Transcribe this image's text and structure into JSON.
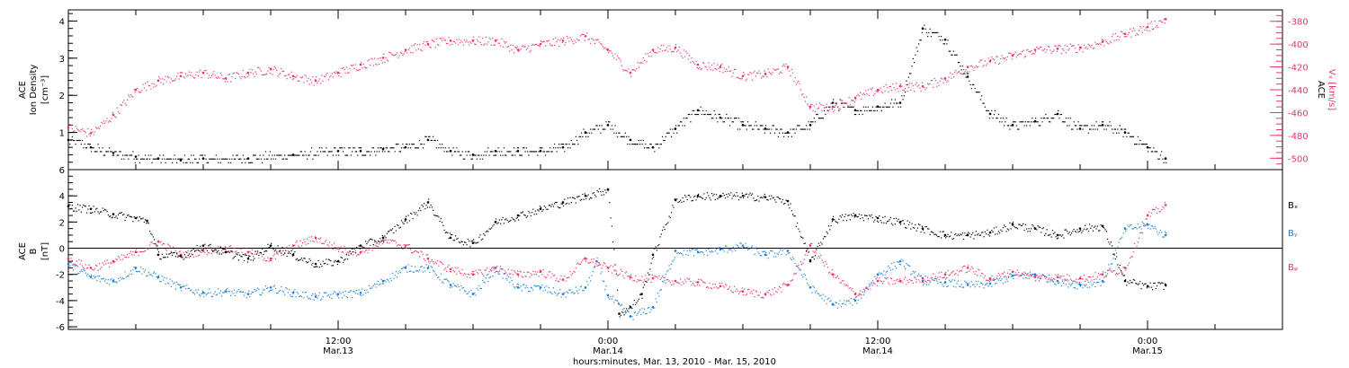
{
  "colors": {
    "black": "#000000",
    "pink": "#e8356a",
    "blue": "#1d80d6"
  },
  "x_axis": {
    "title": "hours:minutes, Mar. 13, 2010 - Mar. 15, 2010",
    "ticks": [
      {
        "t": 12,
        "time": "12:00",
        "date": "Mar.13"
      },
      {
        "t": 24,
        "time": "0:00",
        "date": "Mar.14"
      },
      {
        "t": 36,
        "time": "12:00",
        "date": "Mar.14"
      },
      {
        "t": 48,
        "time": "0:00",
        "date": "Mar.15"
      }
    ]
  },
  "chart_data": [
    {
      "type": "scatter",
      "panel": "top",
      "x_range_hours": [
        0,
        54
      ],
      "left_axis": {
        "label_lines": [
          "ACE",
          "Ion Density",
          "[cm⁻³]"
        ],
        "range": [
          0,
          4.3
        ],
        "ticks": [
          "1",
          "2",
          "3",
          "4"
        ]
      },
      "right_axis": {
        "label_lines": [
          "ACE",
          "Vₓ [km/s]"
        ],
        "range": [
          -510,
          -370
        ],
        "ticks": [
          "-380",
          "-400",
          "-420",
          "-440",
          "-460",
          "-480",
          "-500"
        ],
        "color": "#e8356a"
      },
      "series": [
        {
          "name": "Ion Density",
          "color": "#000000",
          "axis": "left",
          "points": [
            [
              0,
              0.8
            ],
            [
              1,
              0.6
            ],
            [
              2,
              0.45
            ],
            [
              3,
              0.35
            ],
            [
              4,
              0.3
            ],
            [
              5,
              0.25
            ],
            [
              6,
              0.3
            ],
            [
              8,
              0.3
            ],
            [
              10,
              0.4
            ],
            [
              12,
              0.5
            ],
            [
              13,
              0.5
            ],
            [
              14,
              0.55
            ],
            [
              15,
              0.6
            ],
            [
              16,
              0.8
            ],
            [
              17,
              0.5
            ],
            [
              18,
              0.4
            ],
            [
              19,
              0.5
            ],
            [
              20,
              0.5
            ],
            [
              21,
              0.5
            ],
            [
              22,
              0.6
            ],
            [
              23,
              1.0
            ],
            [
              24,
              1.2
            ],
            [
              25,
              0.8
            ],
            [
              26,
              0.6
            ],
            [
              27,
              1.1
            ],
            [
              28,
              1.6
            ],
            [
              29,
              1.4
            ],
            [
              30,
              1.2
            ],
            [
              31,
              1.1
            ],
            [
              32,
              1.0
            ],
            [
              33,
              1.2
            ],
            [
              34,
              1.8
            ],
            [
              35,
              1.6
            ],
            [
              36,
              1.7
            ],
            [
              37,
              1.8
            ],
            [
              38,
              3.8
            ],
            [
              39,
              3.5
            ],
            [
              40,
              2.5
            ],
            [
              41,
              1.5
            ],
            [
              42,
              1.2
            ],
            [
              43,
              1.3
            ],
            [
              44,
              1.5
            ],
            [
              45,
              1.1
            ],
            [
              46,
              1.2
            ],
            [
              47,
              1.0
            ],
            [
              48,
              0.6
            ],
            [
              48.8,
              0.3
            ]
          ]
        },
        {
          "name": "Vx",
          "color": "#e8356a",
          "axis": "right",
          "points": [
            [
              0,
              -473
            ],
            [
              1,
              -478
            ],
            [
              2,
              -462
            ],
            [
              3,
              -440
            ],
            [
              4,
              -432
            ],
            [
              5,
              -428
            ],
            [
              6,
              -425
            ],
            [
              7,
              -430
            ],
            [
              8,
              -425
            ],
            [
              9,
              -422
            ],
            [
              10,
              -428
            ],
            [
              11,
              -432
            ],
            [
              12,
              -425
            ],
            [
              13,
              -418
            ],
            [
              14,
              -412
            ],
            [
              15,
              -405
            ],
            [
              16,
              -400
            ],
            [
              17,
              -397
            ],
            [
              18,
              -397
            ],
            [
              19,
              -397
            ],
            [
              20,
              -405
            ],
            [
              21,
              -400
            ],
            [
              22,
              -397
            ],
            [
              23,
              -393
            ],
            [
              24,
              -405
            ],
            [
              25,
              -425
            ],
            [
              26,
              -405
            ],
            [
              27,
              -403
            ],
            [
              28,
              -418
            ],
            [
              29,
              -420
            ],
            [
              30,
              -428
            ],
            [
              31,
              -426
            ],
            [
              32,
              -420
            ],
            [
              33,
              -455
            ],
            [
              34,
              -455
            ],
            [
              35,
              -447
            ],
            [
              36,
              -440
            ],
            [
              37,
              -437
            ],
            [
              38,
              -437
            ],
            [
              39,
              -430
            ],
            [
              40,
              -420
            ],
            [
              41,
              -415
            ],
            [
              42,
              -410
            ],
            [
              43,
              -405
            ],
            [
              44,
              -404
            ],
            [
              45,
              -403
            ],
            [
              46,
              -398
            ],
            [
              47,
              -391
            ],
            [
              48,
              -385
            ],
            [
              48.8,
              -378
            ]
          ]
        }
      ]
    },
    {
      "type": "scatter",
      "panel": "bottom",
      "x_range_hours": [
        0,
        54
      ],
      "y_axis": {
        "label_lines": [
          "ACE",
          "B",
          "[nT]"
        ],
        "range": [
          -6.2,
          6
        ],
        "ticks": [
          "6",
          "4",
          "2",
          "0",
          "-2",
          "-4",
          "-6"
        ]
      },
      "zero_line": true,
      "series": [
        {
          "name": "Bₓ",
          "color": "#000000",
          "points": [
            [
              0,
              3.2
            ],
            [
              1,
              3.0
            ],
            [
              2,
              2.6
            ],
            [
              3,
              2.3
            ],
            [
              3.5,
              2.1
            ],
            [
              4,
              -0.5
            ],
            [
              5,
              -0.6
            ],
            [
              6,
              0.2
            ],
            [
              7,
              -0.3
            ],
            [
              8,
              -0.8
            ],
            [
              9,
              0.2
            ],
            [
              10,
              -0.5
            ],
            [
              11,
              -1.2
            ],
            [
              12,
              -1.0
            ],
            [
              13,
              0.2
            ],
            [
              14,
              0.8
            ],
            [
              15,
              2.2
            ],
            [
              16,
              3.5
            ],
            [
              17,
              0.8
            ],
            [
              18,
              0.4
            ],
            [
              19,
              2.0
            ],
            [
              20,
              2.5
            ],
            [
              21,
              3.0
            ],
            [
              22,
              3.5
            ],
            [
              23,
              4.0
            ],
            [
              24,
              4.5
            ],
            [
              24.5,
              -5.0
            ],
            [
              25,
              -4.5
            ],
            [
              25.5,
              -3.5
            ],
            [
              26,
              -0.5
            ],
            [
              27,
              3.7
            ],
            [
              28,
              4.0
            ],
            [
              29,
              4.0
            ],
            [
              30,
              4.0
            ],
            [
              31,
              3.9
            ],
            [
              32,
              3.6
            ],
            [
              33,
              -1.0
            ],
            [
              34,
              2.2
            ],
            [
              35,
              2.5
            ],
            [
              36,
              2.3
            ],
            [
              37,
              2.0
            ],
            [
              38,
              1.5
            ],
            [
              39,
              1.0
            ],
            [
              40,
              1.0
            ],
            [
              41,
              1.2
            ],
            [
              42,
              1.8
            ],
            [
              43,
              1.5
            ],
            [
              44,
              1.0
            ],
            [
              45,
              1.5
            ],
            [
              46,
              1.7
            ],
            [
              47,
              -2.5
            ],
            [
              48,
              -2.9
            ],
            [
              48.8,
              -2.8
            ]
          ]
        },
        {
          "name": "Bᵧ",
          "color": "#1d80d6",
          "points": [
            [
              0,
              -1.2
            ],
            [
              1,
              -2.2
            ],
            [
              2,
              -2.5
            ],
            [
              3,
              -1.5
            ],
            [
              4,
              -2.2
            ],
            [
              5,
              -3.0
            ],
            [
              6,
              -3.4
            ],
            [
              7,
              -3.3
            ],
            [
              8,
              -3.5
            ],
            [
              9,
              -3.0
            ],
            [
              10,
              -3.4
            ],
            [
              11,
              -3.7
            ],
            [
              12,
              -3.5
            ],
            [
              13,
              -3.4
            ],
            [
              14,
              -2.5
            ],
            [
              15,
              -1.5
            ],
            [
              16,
              -1.5
            ],
            [
              17,
              -2.8
            ],
            [
              18,
              -3.5
            ],
            [
              19,
              -1.5
            ],
            [
              20,
              -3.0
            ],
            [
              21,
              -3.0
            ],
            [
              22,
              -3.5
            ],
            [
              23,
              -3.0
            ],
            [
              23.5,
              -1.0
            ],
            [
              24,
              -3.6
            ],
            [
              25,
              -5.2
            ],
            [
              26,
              -4.5
            ],
            [
              27,
              -0.2
            ],
            [
              28,
              -0.3
            ],
            [
              29,
              -0.1
            ],
            [
              30,
              0.2
            ],
            [
              31,
              -0.5
            ],
            [
              32,
              -0.2
            ],
            [
              33,
              -3.0
            ],
            [
              34,
              -4.3
            ],
            [
              35,
              -4.0
            ],
            [
              36,
              -2.0
            ],
            [
              37,
              -1.0
            ],
            [
              38,
              -2.5
            ],
            [
              39,
              -2.6
            ],
            [
              40,
              -2.8
            ],
            [
              41,
              -2.7
            ],
            [
              42,
              -2.1
            ],
            [
              43,
              -2.0
            ],
            [
              44,
              -2.5
            ],
            [
              45,
              -2.8
            ],
            [
              46,
              -2.5
            ],
            [
              47,
              1.5
            ],
            [
              48,
              1.8
            ],
            [
              48.8,
              1.0
            ]
          ]
        },
        {
          "name": "Bᵩ",
          "color": "#e8356a",
          "points": [
            [
              0,
              -0.8
            ],
            [
              1,
              -1.5
            ],
            [
              2,
              -1.0
            ],
            [
              3,
              -0.3
            ],
            [
              4,
              0.5
            ],
            [
              5,
              -0.5
            ],
            [
              6,
              -0.2
            ],
            [
              7,
              0.0
            ],
            [
              8,
              -0.3
            ],
            [
              9,
              -0.8
            ],
            [
              10,
              0.2
            ],
            [
              11,
              0.8
            ],
            [
              12,
              0.0
            ],
            [
              13,
              -0.3
            ],
            [
              14,
              0.6
            ],
            [
              15,
              0.2
            ],
            [
              16,
              -0.8
            ],
            [
              17,
              -1.6
            ],
            [
              18,
              -2.0
            ],
            [
              19,
              -1.5
            ],
            [
              20,
              -2.0
            ],
            [
              21,
              -1.8
            ],
            [
              22,
              -2.4
            ],
            [
              23,
              -0.8
            ],
            [
              24,
              -1.5
            ],
            [
              25,
              -2.2
            ],
            [
              26,
              -2.3
            ],
            [
              27,
              -2.5
            ],
            [
              28,
              -2.6
            ],
            [
              29,
              -2.9
            ],
            [
              30,
              -3.3
            ],
            [
              31,
              -3.5
            ],
            [
              32,
              -2.8
            ],
            [
              33,
              0.2
            ],
            [
              34,
              -2.0
            ],
            [
              35,
              -3.5
            ],
            [
              36,
              -2.5
            ],
            [
              37,
              -2.5
            ],
            [
              38,
              -2.3
            ],
            [
              39,
              -2.0
            ],
            [
              40,
              -1.5
            ],
            [
              41,
              -2.3
            ],
            [
              42,
              -1.8
            ],
            [
              43,
              -2.2
            ],
            [
              44,
              -2.2
            ],
            [
              45,
              -2.3
            ],
            [
              46,
              -2.0
            ],
            [
              47,
              -1.5
            ],
            [
              48,
              2.5
            ],
            [
              48.8,
              3.3
            ]
          ]
        }
      ],
      "legend": {
        "placement": "right",
        "entries": [
          "Bₓ",
          "Bᵧ",
          "Bᵩ"
        ]
      }
    }
  ]
}
